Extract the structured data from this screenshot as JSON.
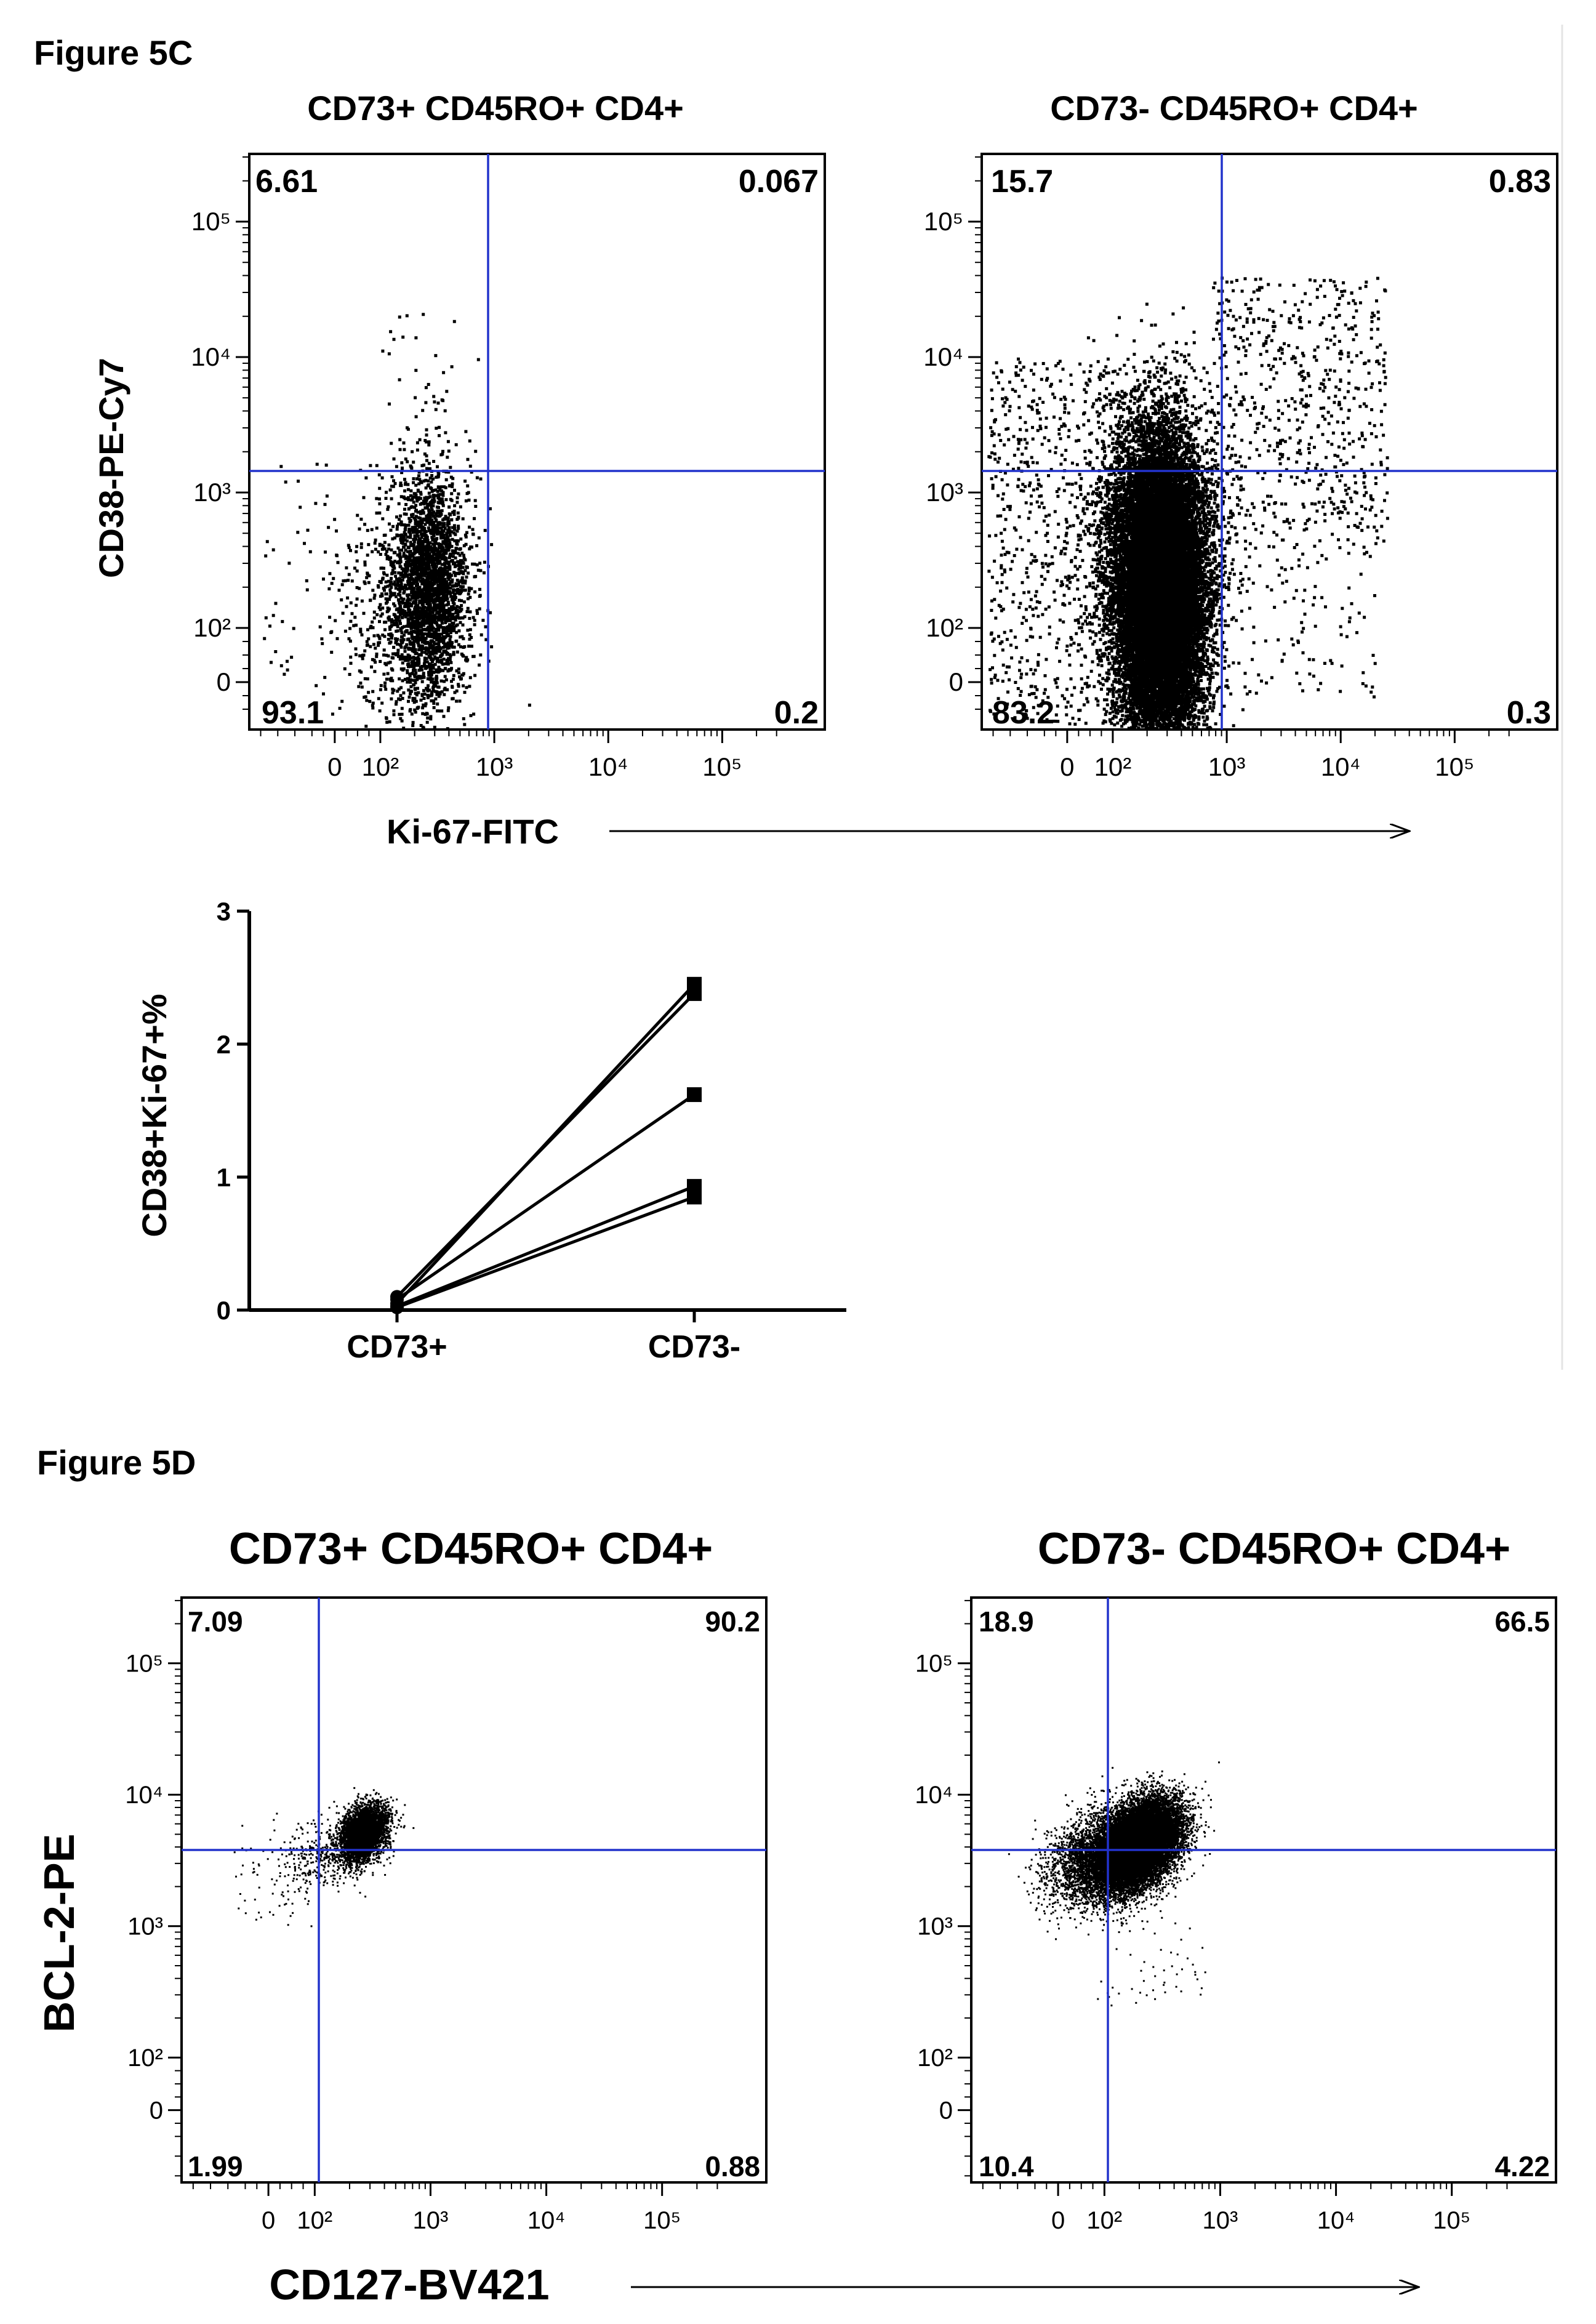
{
  "figures": [
    {
      "label": "Figure 5C",
      "x_axis_label": "Ki-67-FITC",
      "y_axis_label": "CD38-PE-Cy7",
      "axis_ticks": [
        "0",
        "10²",
        "10³",
        "10⁴",
        "10⁵"
      ],
      "panels": [
        {
          "title": "CD73+ CD45RO+ CD4+",
          "quadrants": {
            "top_left": "6.61",
            "top_right": "0.067",
            "bottom_left": "93.1",
            "bottom_right": "0.2"
          }
        },
        {
          "title": "CD73- CD45RO+ CD4+",
          "quadrants": {
            "top_left": "15.7",
            "top_right": "0.83",
            "bottom_left": "83.2",
            "bottom_right": "0.3"
          }
        }
      ]
    },
    {
      "label": "Figure 5D",
      "x_axis_label": "CD127-BV421",
      "y_axis_label": "BCL-2-PE",
      "axis_ticks": [
        "0",
        "10²",
        "10³",
        "10⁴",
        "10⁵"
      ],
      "panels": [
        {
          "title": "CD73+ CD45RO+ CD4+",
          "quadrants": {
            "top_left": "7.09",
            "top_right": "90.2",
            "bottom_left": "1.99",
            "bottom_right": "0.88"
          }
        },
        {
          "title": "CD73- CD45RO+ CD4+",
          "quadrants": {
            "top_left": "18.9",
            "top_right": "66.5",
            "bottom_left": "10.4",
            "bottom_right": "4.22"
          }
        }
      ]
    }
  ],
  "chart_data": [
    {
      "type": "scatter",
      "title": "CD73+ CD45RO+ CD4+",
      "xlabel": "Ki-67-FITC",
      "ylabel": "CD38-PE-Cy7",
      "x_scale": "biexponential",
      "y_scale": "biexponential",
      "x_gate": 700,
      "y_gate": 1000,
      "quadrant_percentages": {
        "top_left": 6.61,
        "top_right": 0.067,
        "bottom_left": 93.1,
        "bottom_right": 0.2
      }
    },
    {
      "type": "scatter",
      "title": "CD73- CD45RO+ CD4+",
      "xlabel": "Ki-67-FITC",
      "ylabel": "CD38-PE-Cy7",
      "x_scale": "biexponential",
      "y_scale": "biexponential",
      "x_gate": 700,
      "y_gate": 1000,
      "quadrant_percentages": {
        "top_left": 15.7,
        "top_right": 0.83,
        "bottom_left": 83.2,
        "bottom_right": 0.3
      }
    },
    {
      "type": "line",
      "ylabel": "CD38+Ki-67+%",
      "categories": [
        "CD73+",
        "CD73-"
      ],
      "ylim": [
        0,
        3
      ],
      "yticks": [
        0,
        1,
        2,
        3
      ],
      "series": [
        {
          "values": [
            0.05,
            2.45
          ]
        },
        {
          "values": [
            0.1,
            2.38
          ]
        },
        {
          "values": [
            0.08,
            1.62
          ]
        },
        {
          "values": [
            0.03,
            0.93
          ]
        },
        {
          "values": [
            0.02,
            0.85
          ]
        }
      ]
    },
    {
      "type": "scatter",
      "title": "CD73+ CD45RO+ CD4+",
      "xlabel": "CD127-BV421",
      "ylabel": "BCL-2-PE",
      "x_scale": "biexponential",
      "y_scale": "biexponential",
      "x_gate": 120,
      "y_gate": 3000,
      "quadrant_percentages": {
        "top_left": 7.09,
        "top_right": 90.2,
        "bottom_left": 1.99,
        "bottom_right": 0.88
      }
    },
    {
      "type": "scatter",
      "title": "CD73- CD45RO+ CD4+",
      "xlabel": "CD127-BV421",
      "ylabel": "BCL-2-PE",
      "x_scale": "biexponential",
      "y_scale": "biexponential",
      "x_gate": 120,
      "y_gate": 3000,
      "quadrant_percentages": {
        "top_left": 18.9,
        "top_right": 66.5,
        "bottom_left": 10.4,
        "bottom_right": 4.22
      }
    }
  ],
  "colors": {
    "gate_line": "#2233cc",
    "dots": "#000000",
    "axis": "#000000"
  }
}
